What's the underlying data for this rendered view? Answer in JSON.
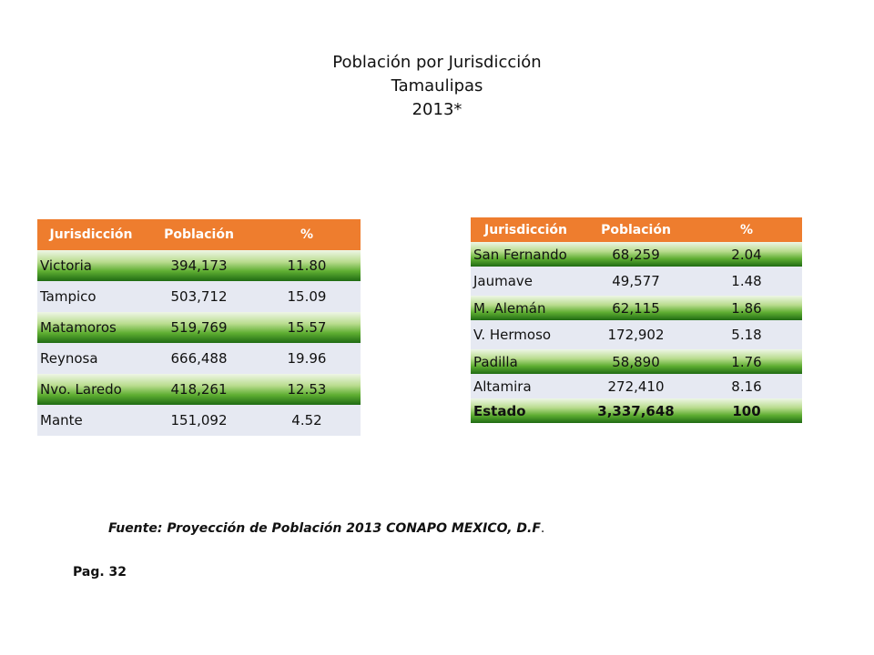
{
  "title": {
    "line1": "Población por Jurisdicción",
    "line2": "Tamaulipas",
    "line3": "2013*"
  },
  "headers": {
    "col1": "Jurisdicción",
    "col2": "Población",
    "col3": "%"
  },
  "table_left": [
    {
      "name": "Victoria",
      "population": "394,173",
      "percent": "11.80"
    },
    {
      "name": "Tampico",
      "population": "503,712",
      "percent": "15.09"
    },
    {
      "name": "Matamoros",
      "population": "519,769",
      "percent": "15.57"
    },
    {
      "name": "Reynosa",
      "population": "666,488",
      "percent": "19.96"
    },
    {
      "name": "Nvo. Laredo",
      "population": "418,261",
      "percent": "12.53"
    },
    {
      "name": "Mante",
      "population": "151,092",
      "percent": "4.52"
    }
  ],
  "table_right": [
    {
      "name": "San Fernando",
      "population": "68,259",
      "percent": "2.04"
    },
    {
      "name": "Jaumave",
      "population": "49,577",
      "percent": "1.48"
    },
    {
      "name": "M. Alemán",
      "population": "62,115",
      "percent": "1.86"
    },
    {
      "name": "V. Hermoso",
      "population": "172,902",
      "percent": "5.18"
    },
    {
      "name": "Padilla",
      "population": "58,890",
      "percent": "1.76"
    },
    {
      "name": "Altamira",
      "population": "272,410",
      "percent": "8.16"
    },
    {
      "name": "Estado",
      "population": "3,337,648",
      "percent": "100"
    }
  ],
  "source": "Fuente: Proyección de Población 2013 CONAPO MEXICO, D.F",
  "source_end": ".",
  "page": "Pag. 32",
  "colors": {
    "header": "#ee7d2e",
    "row_green": "#5fae32",
    "row_light": "#e6e9f2"
  }
}
